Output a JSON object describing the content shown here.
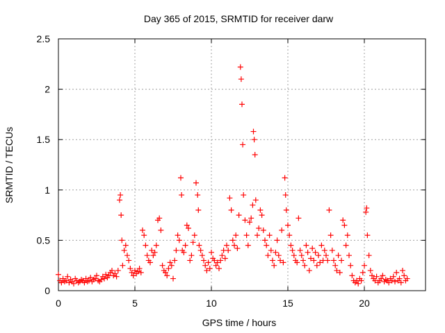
{
  "chart_data": {
    "type": "scatter",
    "title": "Day 365 of 2015, SRMTID for receiver darw",
    "xlabel": "GPS time / hours",
    "ylabel": "SRMTID / TECUs",
    "xlim": [
      0,
      24
    ],
    "ylim": [
      0,
      2.5
    ],
    "grid": true,
    "x_ticks": [
      0,
      5,
      10,
      15,
      20
    ],
    "x_tick_labels": [
      "0",
      "5",
      "10",
      "15",
      "20"
    ],
    "y_ticks": [
      0,
      0.5,
      1,
      1.5,
      2,
      2.5
    ],
    "y_tick_labels": [
      "0",
      "0.5",
      "1",
      "1.5",
      "2",
      "2.5"
    ],
    "marker": "+",
    "marker_color": "#ff0000",
    "series": [
      {
        "name": "SRMTID",
        "x": [
          0.0,
          0.1,
          0.2,
          0.3,
          0.4,
          0.5,
          0.6,
          0.7,
          0.8,
          0.9,
          1.0,
          1.1,
          1.2,
          1.3,
          1.4,
          1.5,
          1.6,
          1.7,
          1.8,
          1.9,
          2.0,
          2.1,
          2.2,
          2.3,
          2.4,
          2.5,
          2.6,
          2.7,
          2.8,
          2.9,
          3.0,
          3.1,
          3.2,
          3.3,
          3.4,
          3.5,
          3.6,
          3.7,
          3.8,
          3.9,
          4.0,
          4.05,
          4.1,
          4.15,
          4.2,
          4.3,
          4.4,
          4.5,
          4.6,
          4.7,
          4.8,
          4.9,
          5.0,
          5.1,
          5.2,
          5.3,
          5.4,
          5.5,
          5.6,
          5.7,
          5.8,
          5.9,
          6.0,
          6.1,
          6.2,
          6.3,
          6.4,
          6.5,
          6.6,
          6.7,
          6.8,
          6.9,
          7.0,
          7.1,
          7.2,
          7.3,
          7.4,
          7.5,
          7.6,
          7.7,
          7.8,
          7.9,
          8.0,
          8.05,
          8.1,
          8.2,
          8.3,
          8.4,
          8.5,
          8.6,
          8.7,
          8.8,
          8.9,
          9.0,
          9.1,
          9.15,
          9.2,
          9.3,
          9.4,
          9.5,
          9.6,
          9.7,
          9.8,
          9.9,
          10.0,
          10.1,
          10.2,
          10.3,
          10.4,
          10.5,
          10.6,
          10.7,
          10.8,
          10.9,
          11.0,
          11.1,
          11.2,
          11.3,
          11.4,
          11.5,
          11.6,
          11.7,
          11.8,
          11.9,
          11.95,
          12.0,
          12.05,
          12.1,
          12.2,
          12.3,
          12.4,
          12.5,
          12.6,
          12.7,
          12.75,
          12.8,
          12.85,
          12.9,
          13.0,
          13.1,
          13.2,
          13.3,
          13.4,
          13.5,
          13.6,
          13.7,
          13.8,
          13.9,
          14.0,
          14.1,
          14.2,
          14.3,
          14.4,
          14.5,
          14.6,
          14.7,
          14.8,
          14.85,
          14.9,
          15.0,
          15.1,
          15.2,
          15.3,
          15.4,
          15.5,
          15.6,
          15.7,
          15.8,
          15.9,
          16.0,
          16.1,
          16.2,
          16.3,
          16.4,
          16.5,
          16.6,
          16.7,
          16.8,
          16.9,
          17.0,
          17.1,
          17.2,
          17.3,
          17.4,
          17.5,
          17.6,
          17.7,
          17.8,
          17.9,
          18.0,
          18.1,
          18.2,
          18.3,
          18.4,
          18.5,
          18.6,
          18.7,
          18.8,
          18.9,
          19.0,
          19.1,
          19.2,
          19.3,
          19.4,
          19.5,
          19.6,
          19.7,
          19.8,
          19.9,
          20.0,
          20.1,
          20.15,
          20.2,
          20.3,
          20.4,
          20.5,
          20.6,
          20.7,
          20.8,
          20.9,
          21.0,
          21.1,
          21.2,
          21.3,
          21.4,
          21.5,
          21.6,
          21.7,
          21.8,
          21.9,
          22.0,
          22.1,
          22.2,
          22.3,
          22.4,
          22.5,
          22.6,
          22.7,
          22.8
        ],
        "y": [
          0.16,
          0.1,
          0.08,
          0.12,
          0.09,
          0.1,
          0.14,
          0.08,
          0.11,
          0.09,
          0.07,
          0.12,
          0.1,
          0.08,
          0.09,
          0.11,
          0.1,
          0.08,
          0.12,
          0.09,
          0.1,
          0.13,
          0.09,
          0.11,
          0.12,
          0.15,
          0.1,
          0.09,
          0.11,
          0.14,
          0.12,
          0.16,
          0.13,
          0.15,
          0.18,
          0.2,
          0.15,
          0.17,
          0.14,
          0.2,
          0.9,
          0.95,
          0.75,
          0.5,
          0.25,
          0.4,
          0.45,
          0.35,
          0.3,
          0.22,
          0.18,
          0.15,
          0.2,
          0.17,
          0.19,
          0.22,
          0.18,
          0.6,
          0.55,
          0.45,
          0.35,
          0.3,
          0.28,
          0.4,
          0.35,
          0.38,
          0.45,
          0.7,
          0.72,
          0.6,
          0.25,
          0.2,
          0.18,
          0.15,
          0.22,
          0.28,
          0.25,
          0.12,
          0.3,
          0.4,
          0.55,
          0.5,
          1.12,
          0.95,
          0.4,
          0.38,
          0.45,
          0.65,
          0.62,
          0.3,
          0.35,
          0.48,
          0.55,
          1.07,
          0.95,
          0.8,
          0.45,
          0.4,
          0.35,
          0.3,
          0.25,
          0.2,
          0.28,
          0.22,
          0.38,
          0.32,
          0.3,
          0.25,
          0.28,
          0.22,
          0.3,
          0.35,
          0.4,
          0.32,
          0.45,
          0.4,
          0.92,
          0.8,
          0.5,
          0.45,
          0.55,
          0.42,
          0.75,
          2.22,
          2.1,
          1.85,
          1.45,
          0.95,
          0.7,
          0.55,
          0.45,
          0.68,
          0.72,
          0.85,
          1.58,
          1.5,
          1.35,
          0.9,
          0.55,
          0.62,
          0.8,
          0.75,
          0.6,
          0.5,
          0.45,
          0.35,
          0.55,
          0.4,
          0.3,
          0.25,
          0.38,
          0.5,
          0.35,
          0.3,
          0.6,
          0.28,
          1.12,
          0.95,
          0.8,
          0.65,
          0.55,
          0.45,
          0.4,
          0.35,
          0.3,
          0.28,
          0.72,
          0.4,
          0.35,
          0.3,
          0.25,
          0.45,
          0.38,
          0.2,
          0.32,
          0.42,
          0.3,
          0.38,
          0.25,
          0.35,
          0.28,
          0.45,
          0.3,
          0.4,
          0.35,
          0.3,
          0.8,
          0.55,
          0.4,
          0.3,
          0.25,
          0.2,
          0.35,
          0.18,
          0.3,
          0.7,
          0.65,
          0.45,
          0.55,
          0.35,
          0.25,
          0.15,
          0.1,
          0.08,
          0.1,
          0.07,
          0.12,
          0.1,
          0.18,
          0.25,
          0.78,
          0.82,
          0.55,
          0.35,
          0.2,
          0.15,
          0.12,
          0.1,
          0.14,
          0.08,
          0.1,
          0.12,
          0.15,
          0.09,
          0.11,
          0.1,
          0.08,
          0.12,
          0.1,
          0.14,
          0.09,
          0.18,
          0.1,
          0.12,
          0.08,
          0.2,
          0.15,
          0.1,
          0.12
        ]
      }
    ]
  }
}
